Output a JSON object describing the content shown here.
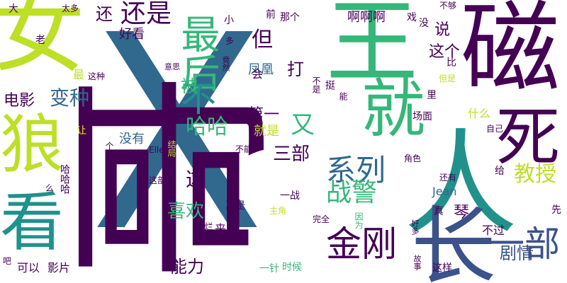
{
  "palette": {
    "dark_purple": "#440154",
    "indigo": "#3b528b",
    "steel_blue": "#31688e",
    "teal": "#21918c",
    "green": "#35b779",
    "lime": "#bddf26",
    "yellow": "#fde725"
  },
  "words": [
    {
      "text": "X",
      "size": 380,
      "color": "#31688e"
    },
    {
      "text": "哥",
      "size": 300,
      "color": "#440154"
    },
    {
      "text": "女",
      "size": 230,
      "color": "#bddf26"
    },
    {
      "text": "人",
      "size": 200,
      "color": "#21918c"
    },
    {
      "text": "王",
      "size": 180,
      "color": "#35b779"
    },
    {
      "text": "磁",
      "size": 150,
      "color": "#440154"
    },
    {
      "text": "长",
      "size": 140,
      "color": "#3b528b"
    },
    {
      "text": "死",
      "size": 100,
      "color": "#440154"
    },
    {
      "text": "就",
      "size": 100,
      "color": "#35b779"
    },
    {
      "text": "狼",
      "size": 90,
      "color": "#bddf26"
    },
    {
      "text": "看",
      "size": 90,
      "color": "#21918c"
    },
    {
      "text": "最后",
      "size": 55,
      "color": "#35b779"
    },
    {
      "text": "不",
      "size": 50,
      "color": "#21918c"
    },
    {
      "text": "金刚",
      "size": 50,
      "color": "#440154"
    },
    {
      "text": "一部",
      "size": 50,
      "color": "#3b528b"
    },
    {
      "text": "系列",
      "size": 42,
      "color": "#31688e"
    },
    {
      "text": "还是",
      "size": 36,
      "color": "#440154"
    },
    {
      "text": "战警",
      "size": 36,
      "color": "#35b779"
    },
    {
      "text": "又",
      "size": 34,
      "color": "#35b779"
    },
    {
      "text": "教授",
      "size": 30,
      "color": "#bddf26"
    },
    {
      "text": "哈哈",
      "size": 30,
      "color": "#35b779"
    },
    {
      "text": "能力",
      "size": 30,
      "color": "#440154"
    },
    {
      "text": "但",
      "size": 30,
      "color": "#440154"
    },
    {
      "text": "三部",
      "size": 30,
      "color": "#440154"
    },
    {
      "text": "剧情",
      "size": 28,
      "color": "#3b528b"
    },
    {
      "text": "变种",
      "size": 28,
      "color": "#31688e"
    },
    {
      "text": "喜欢",
      "size": 26,
      "color": "#35b779"
    },
    {
      "text": "还",
      "size": 24,
      "color": "#440154"
    },
    {
      "text": "电影",
      "size": 22,
      "color": "#440154"
    },
    {
      "text": "打",
      "size": 24,
      "color": "#440154"
    },
    {
      "text": "被",
      "size": 24,
      "color": "#35b779"
    },
    {
      "text": "这",
      "size": 28,
      "color": "#440154"
    },
    {
      "text": "这个",
      "size": 22,
      "color": "#440154"
    },
    {
      "text": "第一",
      "size": 22,
      "color": "#440154"
    },
    {
      "text": "说",
      "size": 22,
      "color": "#440154"
    },
    {
      "text": "琴",
      "size": 22,
      "color": "#440154"
    },
    {
      "text": "凤凰",
      "size": 18,
      "color": "#31688e"
    },
    {
      "text": "啊啊啊",
      "size": 18,
      "color": "#440154"
    },
    {
      "text": "好看",
      "size": 18,
      "color": "#440154"
    },
    {
      "text": "就是",
      "size": 18,
      "color": "#bddf26"
    },
    {
      "text": "没有",
      "size": 18,
      "color": "#31688e"
    },
    {
      "text": "可以",
      "size": 16,
      "color": "#440154"
    },
    {
      "text": "影片",
      "size": 16,
      "color": "#440154"
    },
    {
      "text": "Jean",
      "size": 16,
      "color": "#31688e"
    },
    {
      "text": "最",
      "size": 16,
      "color": "#bddf26"
    },
    {
      "text": "会",
      "size": 16,
      "color": "#440154"
    },
    {
      "text": "来",
      "size": 16,
      "color": "#440154"
    },
    {
      "text": "不过",
      "size": 16,
      "color": "#440154"
    },
    {
      "text": "什么",
      "size": 16,
      "color": "#bddf26"
    },
    {
      "text": "这样",
      "size": 14,
      "color": "#440154"
    },
    {
      "text": "一针",
      "size": 14,
      "color": "#35b779"
    },
    {
      "text": "时候",
      "size": 14,
      "color": "#35b779"
    },
    {
      "text": "真是",
      "size": 14,
      "color": "#440154"
    },
    {
      "text": "那个",
      "size": 14,
      "color": "#440154"
    },
    {
      "text": "场面",
      "size": 14,
      "color": "#440154"
    },
    {
      "text": "里",
      "size": 14,
      "color": "#440154"
    },
    {
      "text": "戏",
      "size": 14,
      "color": "#440154"
    },
    {
      "text": "没",
      "size": 14,
      "color": "#440154"
    },
    {
      "text": "不够",
      "size": 12,
      "color": "#440154"
    },
    {
      "text": "比",
      "size": 14,
      "color": "#440154"
    },
    {
      "text": "但是",
      "size": 12,
      "color": "#bddf26"
    },
    {
      "text": "角色",
      "size": 12,
      "color": "#440154"
    },
    {
      "text": "还有",
      "size": 12,
      "color": "#440154"
    },
    {
      "text": "给",
      "size": 14,
      "color": "#440154"
    },
    {
      "text": "真",
      "size": 14,
      "color": "#440154"
    },
    {
      "text": "先",
      "size": 14,
      "color": "#440154"
    },
    {
      "text": "自己",
      "size": 12,
      "color": "#440154"
    },
    {
      "text": "因为",
      "size": 12,
      "color": "#35b779"
    },
    {
      "text": "完全",
      "size": 12,
      "color": "#440154"
    },
    {
      "text": "主角",
      "size": 12,
      "color": "#bddf26"
    },
    {
      "text": "一战",
      "size": 14,
      "color": "#440154"
    },
    {
      "text": "不能",
      "size": 12,
      "color": "#440154"
    },
    {
      "text": "这部",
      "size": 12,
      "color": "#440154"
    },
    {
      "text": "Ellen",
      "size": 12,
      "color": "#440154"
    },
    {
      "text": "个人",
      "size": 12,
      "color": "#440154"
    },
    {
      "text": "让",
      "size": 14,
      "color": "#fde725"
    },
    {
      "text": "这种",
      "size": 12,
      "color": "#440154"
    },
    {
      "text": "意思",
      "size": 11,
      "color": "#440154"
    },
    {
      "text": "前",
      "size": 14,
      "color": "#440154"
    },
    {
      "text": "太多",
      "size": 12,
      "color": "#440154"
    },
    {
      "text": "大",
      "size": 14,
      "color": "#440154"
    },
    {
      "text": "老",
      "size": 14,
      "color": "#440154"
    },
    {
      "text": "小",
      "size": 14,
      "color": "#440154"
    },
    {
      "text": "多",
      "size": 12,
      "color": "#440154"
    },
    {
      "text": "竟然",
      "size": 11,
      "color": "#440154"
    },
    {
      "text": "天哪",
      "size": 11,
      "color": "#440154"
    },
    {
      "text": "结局",
      "size": 12,
      "color": "#bddf26"
    },
    {
      "text": "哈哈哈",
      "size": 14,
      "color": "#440154"
    },
    {
      "text": "么",
      "size": 12,
      "color": "#440154"
    },
    {
      "text": "吧",
      "size": 12,
      "color": "#440154"
    },
    {
      "text": "男",
      "size": 12,
      "color": "#440154"
    },
    {
      "text": "烂",
      "size": 12,
      "color": "#440154"
    },
    {
      "text": "好多",
      "size": 11,
      "color": "#440154"
    },
    {
      "text": "故事",
      "size": 11,
      "color": "#440154"
    },
    {
      "text": "不是",
      "size": 12,
      "color": "#440154"
    },
    {
      "text": "挺",
      "size": 14,
      "color": "#440154"
    },
    {
      "text": "能",
      "size": 12,
      "color": "#440154"
    }
  ]
}
